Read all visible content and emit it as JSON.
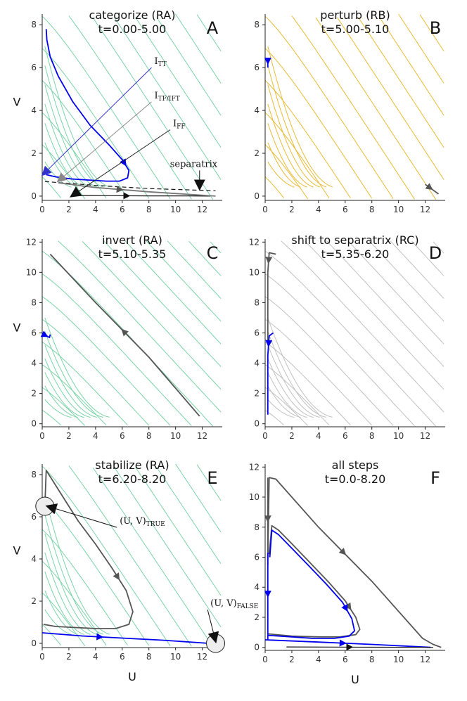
{
  "figure": {
    "x_axis_label": "U",
    "y_axis_label": "V"
  },
  "chart_data": [
    {
      "id": "A",
      "type": "line",
      "panel_letter": "A",
      "title": "categorize (RA)",
      "subtitle": "t=0.00-5.00",
      "stream_color": "#6dcf9e",
      "xlim": [
        0,
        13.5
      ],
      "ylim": [
        -0.2,
        8.5
      ],
      "xticks": [
        0,
        2,
        4,
        6,
        8,
        10,
        12
      ],
      "yticks": [
        0,
        2,
        4,
        6,
        8
      ],
      "xlabel": "",
      "ylabel": "V",
      "annotations": [
        {
          "label": "I",
          "sub": "TT",
          "color": "#3333cc",
          "from": [
            8.2,
            6.0
          ],
          "to": [
            0.05,
            1.0
          ]
        },
        {
          "label": "I",
          "sub": "TF/IFT",
          "color": "#888888",
          "from": [
            8.2,
            4.4
          ],
          "to": [
            1.2,
            0.7
          ]
        },
        {
          "label": "I",
          "sub": "FF",
          "color": "#222222",
          "from": [
            9.6,
            3.1
          ],
          "to": [
            2.2,
            0.0
          ]
        },
        {
          "label": "separatrix",
          "sub": "",
          "color": "#111111",
          "from": [
            11.8,
            1.2
          ],
          "to": [
            11.8,
            0.35
          ]
        }
      ],
      "series": [
        {
          "name": "trajectory (blue)",
          "color": "#0000ee",
          "x": [
            0.3,
            0.35,
            0.6,
            1.2,
            2.3,
            3.6,
            5.0,
            6.0,
            6.5,
            6.4,
            5.8,
            4.8,
            3.5,
            2.2,
            1.0,
            0.3
          ],
          "y": [
            7.8,
            7.3,
            6.5,
            5.6,
            4.4,
            3.3,
            2.4,
            1.7,
            1.2,
            0.85,
            0.7,
            0.7,
            0.75,
            0.8,
            0.9,
            1.0
          ]
        },
        {
          "name": "separatrix",
          "color": "#111111",
          "dashed": true,
          "x": [
            0.2,
            4.0,
            8.0,
            13.0
          ],
          "y": [
            0.68,
            0.5,
            0.35,
            0.25
          ]
        },
        {
          "name": "lower trajectory",
          "color": "#111111",
          "x": [
            2.2,
            5.0,
            8.0,
            11.0,
            12.6
          ],
          "y": [
            0.03,
            0.02,
            0.01,
            0.01,
            0.0
          ]
        },
        {
          "name": "grey trajectory",
          "color": "#777777",
          "x": [
            1.2,
            4.0,
            8.0,
            13.0
          ],
          "y": [
            0.62,
            0.4,
            0.2,
            0.0
          ]
        }
      ]
    },
    {
      "id": "B",
      "type": "line",
      "panel_letter": "B",
      "title": "perturb (RB)",
      "subtitle": "t=5.00-5.10",
      "stream_color": "#e6b320",
      "xlim": [
        0,
        13.5
      ],
      "ylim": [
        -0.2,
        8.5
      ],
      "xticks": [
        0,
        2,
        4,
        6,
        8,
        10,
        12
      ],
      "yticks": [
        0,
        2,
        4,
        6,
        8
      ],
      "xlabel": "",
      "ylabel": "",
      "series": [
        {
          "name": "blue segment",
          "color": "#0000ee",
          "x": [
            0.2,
            0.2
          ],
          "y": [
            6.4,
            6.0
          ]
        },
        {
          "name": "grey segment",
          "color": "#555555",
          "x": [
            12.0,
            13.0
          ],
          "y": [
            0.55,
            0.1
          ]
        }
      ]
    },
    {
      "id": "C",
      "type": "line",
      "panel_letter": "C",
      "title": "invert (RA)",
      "subtitle": "t=5.10-5.35",
      "stream_color": "#6dcf9e",
      "xlim": [
        0,
        13.5
      ],
      "ylim": [
        -0.2,
        12.2
      ],
      "xticks": [
        0,
        2,
        4,
        6,
        8,
        10,
        12
      ],
      "yticks": [
        0,
        2,
        4,
        6,
        8,
        10,
        12
      ],
      "xlabel": "",
      "ylabel": "V",
      "series": [
        {
          "name": "blue segment",
          "color": "#0000ee",
          "x": [
            0.2,
            0.55,
            0.6
          ],
          "y": [
            5.85,
            5.7,
            5.9
          ]
        },
        {
          "name": "grey trajectory",
          "color": "#555555",
          "x": [
            11.8,
            8.0,
            4.0,
            0.6
          ],
          "y": [
            0.5,
            4.4,
            8.0,
            11.2
          ]
        }
      ]
    },
    {
      "id": "D",
      "type": "line",
      "panel_letter": "D",
      "title": "shift to separatrix (RC)",
      "subtitle": "t=5.35-6.20",
      "stream_color": "#bbbbbb",
      "xlim": [
        0,
        13.5
      ],
      "ylim": [
        -0.2,
        12.2
      ],
      "xticks": [
        0,
        2,
        4,
        6,
        8,
        10,
        12
      ],
      "yticks": [
        0,
        2,
        4,
        6,
        8,
        10,
        12
      ],
      "xlabel": "",
      "ylabel": "",
      "series": [
        {
          "name": "grey trajectory",
          "color": "#555555",
          "x": [
            0.8,
            0.3,
            0.2,
            0.2,
            0.2
          ],
          "y": [
            11.2,
            11.3,
            10.0,
            7.0,
            5.5
          ]
        },
        {
          "name": "blue trajectory",
          "color": "#0000ee",
          "x": [
            0.6,
            0.3,
            0.2,
            0.2,
            0.2
          ],
          "y": [
            6.0,
            5.8,
            4.5,
            2.0,
            0.6
          ]
        }
      ]
    },
    {
      "id": "E",
      "type": "line",
      "panel_letter": "E",
      "title": "stabilize (RA)",
      "subtitle": "t=6.20-8.20",
      "stream_color": "#6dcf9e",
      "xlim": [
        0,
        13.5
      ],
      "ylim": [
        -0.2,
        8.5
      ],
      "xticks": [
        0,
        2,
        4,
        6,
        8,
        10,
        12
      ],
      "yticks": [
        0,
        2,
        4,
        6,
        8
      ],
      "xlabel": "U",
      "ylabel": "V",
      "annotations": [
        {
          "label": "(U, V)",
          "sub": "TRUE",
          "color": "#111111",
          "from": [
            5.6,
            5.5
          ],
          "to": [
            0.4,
            6.5
          ]
        },
        {
          "label": "(U, V)",
          "sub": "FALSE",
          "color": "#111111",
          "from": [
            12.4,
            1.6
          ],
          "to": [
            13.0,
            0.1
          ]
        }
      ],
      "series": [
        {
          "name": "grey trajectory",
          "color": "#555555",
          "x": [
            0.2,
            0.3,
            0.8,
            1.6,
            2.7,
            4.0,
            5.2,
            6.3,
            6.8,
            6.5,
            5.5,
            4.0,
            2.5,
            1.0,
            0.1
          ],
          "y": [
            6.5,
            8.2,
            7.7,
            6.9,
            5.8,
            4.7,
            3.6,
            2.5,
            1.5,
            0.9,
            0.7,
            0.7,
            0.75,
            0.8,
            0.9
          ]
        },
        {
          "name": "blue trajectory",
          "color": "#0000ee",
          "x": [
            0.0,
            3.0,
            6.0,
            9.0,
            12.5
          ],
          "y": [
            0.5,
            0.35,
            0.25,
            0.15,
            0.0
          ]
        }
      ],
      "points": [
        {
          "name": "true attractor",
          "x": 0.2,
          "y": 6.5
        },
        {
          "name": "false attractor",
          "x": 13.0,
          "y": 0.0
        }
      ]
    },
    {
      "id": "F",
      "type": "line",
      "panel_letter": "F",
      "title": "all steps",
      "subtitle": "t=0.0-8.20",
      "stream_color": "",
      "xlim": [
        0,
        13.5
      ],
      "ylim": [
        -0.2,
        12.2
      ],
      "xticks": [
        0,
        2,
        4,
        6,
        8,
        10,
        12
      ],
      "yticks": [
        0,
        2,
        4,
        6,
        8,
        10,
        12
      ],
      "xlabel": "U",
      "ylabel": "",
      "series": [
        {
          "name": "grey outer",
          "color": "#555555",
          "x": [
            0.2,
            0.3,
            0.8,
            4.0,
            8.0,
            11.8,
            12.6,
            13.2
          ],
          "y": [
            6.0,
            11.3,
            11.2,
            8.0,
            4.4,
            0.6,
            0.2,
            0.0
          ]
        },
        {
          "name": "grey middle",
          "color": "#555555",
          "x": [
            0.3,
            0.5,
            1.0,
            2.0,
            3.4,
            4.8,
            6.0,
            6.8,
            7.1,
            6.8,
            5.6,
            4.0,
            2.0,
            0.2
          ],
          "y": [
            6.2,
            8.1,
            7.8,
            6.9,
            5.6,
            4.3,
            3.1,
            2.0,
            1.2,
            0.85,
            0.7,
            0.7,
            0.75,
            0.9
          ]
        },
        {
          "name": "grey stem",
          "color": "#555555",
          "x": [
            0.2,
            0.2
          ],
          "y": [
            11.3,
            5.5
          ]
        },
        {
          "name": "blue loop",
          "color": "#0000ee",
          "x": [
            0.35,
            0.5,
            1.0,
            2.0,
            3.3,
            4.6,
            5.8,
            6.5,
            6.7,
            6.3,
            5.2,
            3.5,
            2.0,
            0.2
          ],
          "y": [
            6.0,
            7.8,
            7.5,
            6.6,
            5.4,
            4.2,
            3.0,
            1.9,
            1.1,
            0.75,
            0.6,
            0.6,
            0.7,
            0.8
          ]
        },
        {
          "name": "blue stem",
          "color": "#0000ee",
          "x": [
            0.2,
            0.2
          ],
          "y": [
            6.3,
            0.5
          ]
        },
        {
          "name": "blue bottom",
          "color": "#0000ee",
          "x": [
            0.0,
            4.0,
            8.0,
            12.4
          ],
          "y": [
            0.5,
            0.35,
            0.2,
            0.0
          ]
        },
        {
          "name": "black bottom",
          "color": "#111111",
          "x": [
            1.6,
            5.0,
            8.0,
            12.6
          ],
          "y": [
            0.03,
            0.02,
            0.01,
            0.0
          ]
        }
      ]
    }
  ]
}
